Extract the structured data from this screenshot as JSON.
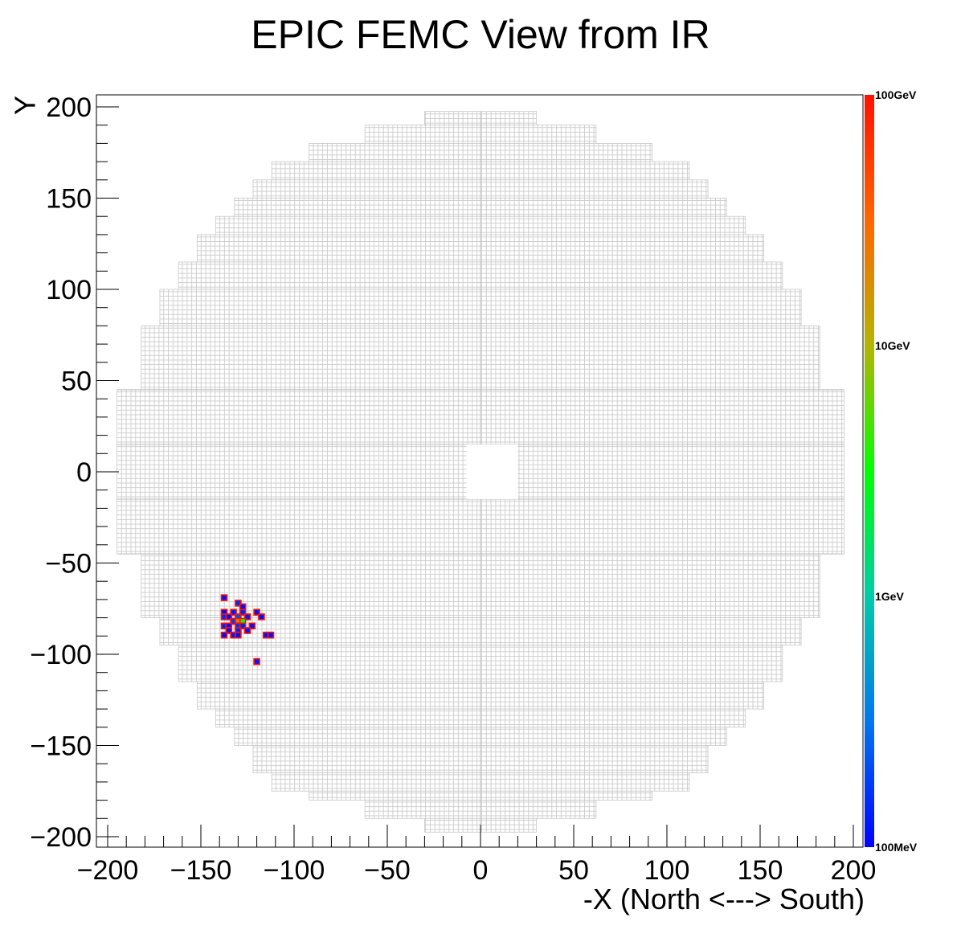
{
  "title": "EPIC FEMC View from IR",
  "chart_data": {
    "type": "heatmap",
    "title": "EPIC FEMC View from IR",
    "xlabel": "-X (North <---> South)",
    "ylabel": "Y",
    "xlim": [
      -205,
      205
    ],
    "ylim": [
      -205,
      207
    ],
    "x_ticks": [
      -200,
      -150,
      -100,
      -50,
      0,
      50,
      100,
      150,
      200
    ],
    "y_ticks": [
      -200,
      -150,
      -100,
      -50,
      0,
      50,
      100,
      150,
      200
    ],
    "x_tick_labels": [
      "−200",
      "−150",
      "−100",
      "−50",
      "0",
      "50",
      "100",
      "150",
      "200"
    ],
    "y_tick_labels": [
      "−200",
      "−150",
      "−100",
      "−50",
      "0",
      "50",
      "100",
      "150",
      "200"
    ],
    "colorbar": {
      "scale": "log",
      "range_gev": [
        0.1,
        100
      ],
      "labels": [
        "100GeV",
        "10GeV",
        "1GeV",
        "100MeV"
      ],
      "label_values_gev": [
        100,
        10,
        1,
        0.1
      ],
      "colors": [
        "#0000ff",
        "#0077ee",
        "#00ccaa",
        "#00ff00",
        "#b5b500",
        "#ff6600",
        "#ff1100"
      ]
    },
    "detector": {
      "cell_size": 2.5,
      "beam_hole": {
        "x": [
          -7.5,
          20
        ],
        "y": [
          -15,
          15
        ]
      },
      "grid_color": "#cccccc",
      "profile": [
        {
          "y": [
            190,
            197.5
          ],
          "x": [
            -30,
            30
          ]
        },
        {
          "y": [
            180,
            190
          ],
          "x": [
            -62,
            62
          ]
        },
        {
          "y": [
            170,
            180
          ],
          "x": [
            -92,
            92
          ]
        },
        {
          "y": [
            160,
            170
          ],
          "x": [
            -112,
            112
          ]
        },
        {
          "y": [
            150,
            160
          ],
          "x": [
            -122,
            122
          ]
        },
        {
          "y": [
            140,
            150
          ],
          "x": [
            -132,
            132
          ]
        },
        {
          "y": [
            130,
            140
          ],
          "x": [
            -142,
            142
          ]
        },
        {
          "y": [
            115,
            130
          ],
          "x": [
            -152,
            152
          ]
        },
        {
          "y": [
            100,
            115
          ],
          "x": [
            -162,
            162
          ]
        },
        {
          "y": [
            80,
            100
          ],
          "x": [
            -172,
            172
          ]
        },
        {
          "y": [
            45,
            80
          ],
          "x": [
            -182,
            182
          ]
        },
        {
          "y": [
            -45,
            45
          ],
          "x": [
            -195,
            195
          ]
        },
        {
          "y": [
            -80,
            -45
          ],
          "x": [
            -182,
            182
          ]
        },
        {
          "y": [
            -95,
            -80
          ],
          "x": [
            -172,
            172
          ]
        },
        {
          "y": [
            -115,
            -95
          ],
          "x": [
            -162,
            162
          ]
        },
        {
          "y": [
            -130,
            -115
          ],
          "x": [
            -152,
            152
          ]
        },
        {
          "y": [
            -140,
            -130
          ],
          "x": [
            -142,
            142
          ]
        },
        {
          "y": [
            -150,
            -140
          ],
          "x": [
            -132,
            132
          ]
        },
        {
          "y": [
            -165,
            -150
          ],
          "x": [
            -122,
            122
          ]
        },
        {
          "y": [
            -175,
            -165
          ],
          "x": [
            -112,
            112
          ]
        },
        {
          "y": [
            -180,
            -175
          ],
          "x": [
            -92,
            92
          ]
        },
        {
          "y": [
            -190,
            -180
          ],
          "x": [
            -62,
            62
          ]
        },
        {
          "y": [
            -197.5,
            -190
          ],
          "x": [
            -30,
            30
          ]
        }
      ]
    },
    "hits": [
      {
        "x": -137.5,
        "y": -69,
        "e": 0.12
      },
      {
        "x": -130,
        "y": -72,
        "e": 0.15
      },
      {
        "x": -127.5,
        "y": -74,
        "e": 0.12
      },
      {
        "x": -137.5,
        "y": -77,
        "e": 0.11
      },
      {
        "x": -132.5,
        "y": -77,
        "e": 0.13
      },
      {
        "x": -127.5,
        "y": -77,
        "e": 0.14
      },
      {
        "x": -120,
        "y": -77,
        "e": 0.12
      },
      {
        "x": -137.5,
        "y": -79.5,
        "e": 0.15
      },
      {
        "x": -135,
        "y": -79.5,
        "e": 0.11
      },
      {
        "x": -130,
        "y": -79.5,
        "e": 0.22
      },
      {
        "x": -125,
        "y": -79.5,
        "e": 0.13
      },
      {
        "x": -117.5,
        "y": -79.5,
        "e": 0.11
      },
      {
        "x": -132.5,
        "y": -82,
        "e": 0.18
      },
      {
        "x": -130,
        "y": -82,
        "e": 25
      },
      {
        "x": -127.5,
        "y": -82,
        "e": 3
      },
      {
        "x": -137.5,
        "y": -84.5,
        "e": 0.14
      },
      {
        "x": -135,
        "y": -84.5,
        "e": 0.12
      },
      {
        "x": -130,
        "y": -84.5,
        "e": 0.16
      },
      {
        "x": -127.5,
        "y": -84.5,
        "e": 0.13
      },
      {
        "x": -122.5,
        "y": -84.5,
        "e": 0.12
      },
      {
        "x": -135,
        "y": -87,
        "e": 0.11
      },
      {
        "x": -130,
        "y": -87,
        "e": 0.14
      },
      {
        "x": -125,
        "y": -87,
        "e": 0.12
      },
      {
        "x": -137.5,
        "y": -89.5,
        "e": 0.11
      },
      {
        "x": -132.5,
        "y": -89.5,
        "e": 0.13
      },
      {
        "x": -130,
        "y": -89.5,
        "e": 0.12
      },
      {
        "x": -115,
        "y": -89.5,
        "e": 0.12
      },
      {
        "x": -112.5,
        "y": -89.5,
        "e": 0.11
      },
      {
        "x": -120,
        "y": -104,
        "e": 0.13
      }
    ]
  }
}
